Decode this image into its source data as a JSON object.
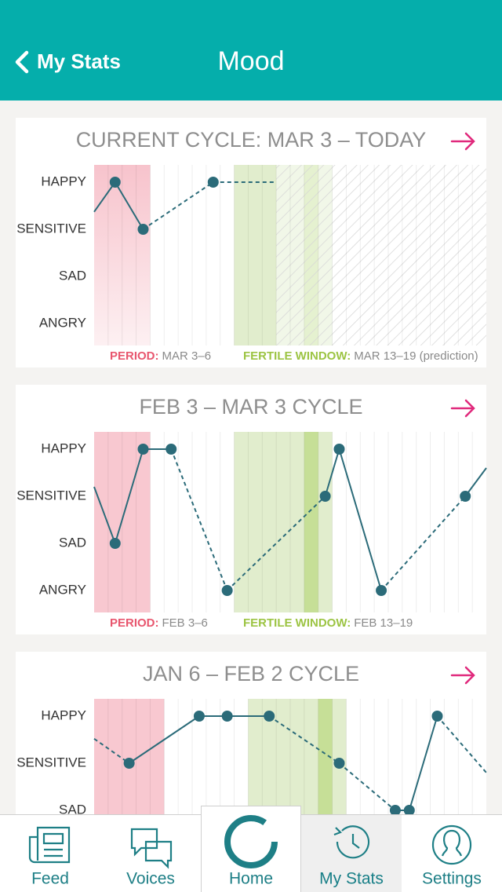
{
  "header": {
    "back": "My Stats",
    "title": "Mood"
  },
  "cards": [
    {
      "title": "CURRENT CYCLE: MAR 3 – TODAY",
      "levels": [
        "HAPPY",
        "SENSITIVE",
        "SAD",
        "ANGRY"
      ],
      "period_days": [
        0,
        3
      ],
      "fertile_days": [
        10,
        16
      ],
      "ovulation_day": 15,
      "forecast_from": 13,
      "days": [
        -0.5,
        1,
        3,
        8,
        12.4
      ],
      "moods": [
        0.63,
        0,
        1,
        0,
        0
      ],
      "segments": [
        "solid",
        "solid",
        "dashed",
        "dashed"
      ],
      "legend": {
        "period_label": "PERIOD:",
        "period_dates": "MAR 3–6",
        "fertile_label": "FERTILE WINDOW:",
        "fertile_dates": "MAR 13–19 (prediction)"
      }
    },
    {
      "title": "FEB 3 – MAR 3 CYCLE",
      "levels": [
        "HAPPY",
        "SENSITIVE",
        "SAD",
        "ANGRY"
      ],
      "period_days": [
        0,
        3
      ],
      "fertile_days": [
        10,
        16
      ],
      "ovulation_day": 15,
      "days": [
        -0.5,
        1,
        3,
        5,
        9,
        16,
        17,
        20,
        26,
        27.5
      ],
      "moods": [
        0.8,
        2,
        0,
        0,
        3,
        1,
        0,
        3,
        1,
        0.4
      ],
      "segments": [
        "solid",
        "solid",
        "solid",
        "dashed",
        "dashed",
        "solid",
        "solid",
        "dashed",
        "solid"
      ],
      "legend": {
        "period_label": "PERIOD:",
        "period_dates": "FEB 3–6",
        "fertile_label": "FERTILE WINDOW:",
        "fertile_dates": "FEB 13–19"
      }
    },
    {
      "title": "JAN 6 – FEB 2 CYCLE",
      "levels": [
        "HAPPY",
        "SENSITIVE",
        "SAD"
      ],
      "period_days": [
        0,
        4
      ],
      "fertile_days": [
        11,
        17
      ],
      "ovulation_day": 16,
      "days": [
        -0.5,
        2,
        7,
        9,
        12,
        17,
        21,
        22,
        24,
        27.5
      ],
      "moods": [
        0.48,
        1,
        0,
        0,
        0,
        1,
        2,
        2,
        0,
        1.2
      ],
      "segments": [
        "dashed",
        "solid",
        "solid",
        "solid",
        "dashed",
        "dashed",
        "solid",
        "solid",
        "dashed"
      ]
    }
  ],
  "tabs": [
    "Feed",
    "Voices",
    "Home",
    "My Stats",
    "Settings"
  ],
  "selected_tab": 3
}
